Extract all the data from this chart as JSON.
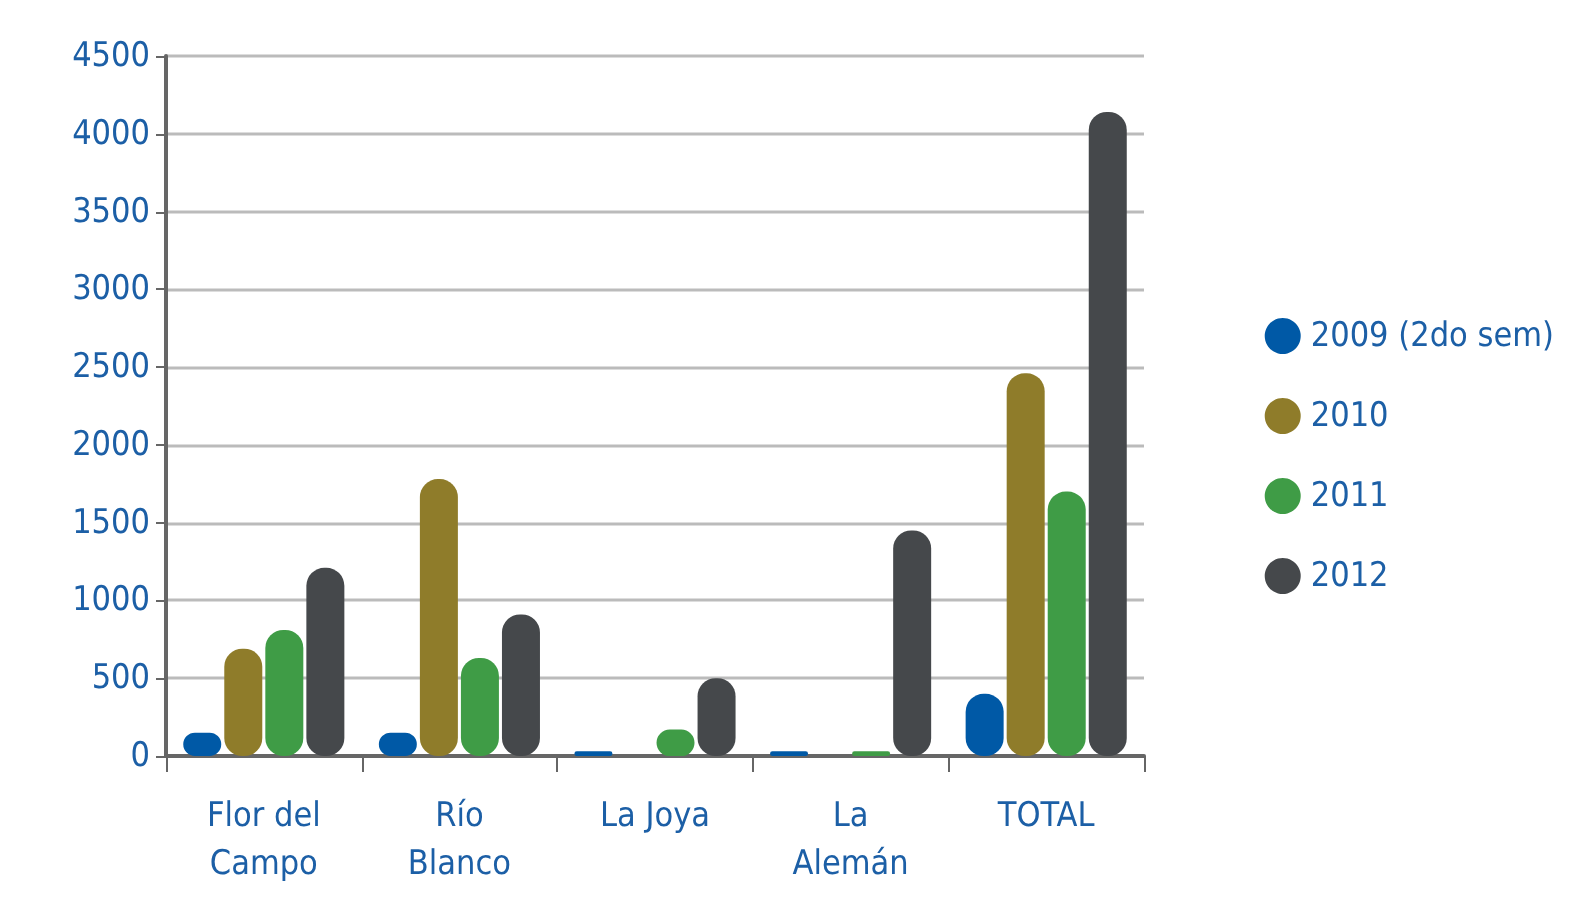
{
  "chart_data": {
    "type": "bar",
    "categories": [
      "Flor del\nCampo",
      "Río\nBlanco",
      "La Joya",
      "La\nAlemán",
      "TOTAL"
    ],
    "series": [
      {
        "name": "2009 (2do sem)",
        "color": "#0059a6",
        "values": [
          150,
          150,
          30,
          30,
          400
        ]
      },
      {
        "name": "2010",
        "color": "#8f7c2a",
        "values": [
          690,
          1780,
          null,
          null,
          2460
        ]
      },
      {
        "name": "2011",
        "color": "#3f9c46",
        "values": [
          810,
          630,
          170,
          30,
          1700
        ]
      },
      {
        "name": "2012",
        "color": "#45484b",
        "values": [
          1210,
          910,
          500,
          1450,
          4140
        ]
      }
    ],
    "ylim": [
      0,
      4500
    ],
    "yticks": [
      0,
      500,
      1000,
      1500,
      2000,
      2500,
      3000,
      3500,
      4000,
      4500
    ],
    "grid": "y",
    "legend": "right"
  }
}
